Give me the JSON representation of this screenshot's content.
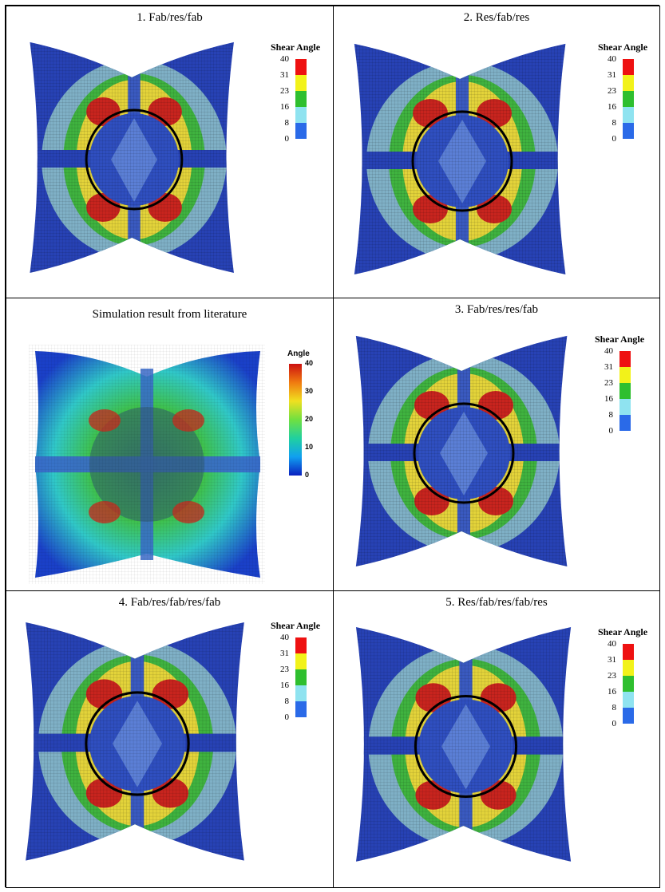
{
  "panels": {
    "p1": {
      "caption": "1. Fab/res/fab"
    },
    "p2": {
      "caption": "2. Res/fab/res"
    },
    "lit": {
      "caption": "Simulation result from literature"
    },
    "p3": {
      "caption": "3. Fab/res/res/fab"
    },
    "p4": {
      "caption": "4. Fab/res/fab/res/fab"
    },
    "p5": {
      "caption": "5. Res/fab/res/fab/res"
    }
  },
  "legend": {
    "title": "Shear Angle",
    "ticks": [
      "40",
      "31",
      "23",
      "16",
      "8",
      "0"
    ],
    "colors": [
      "#ee1111",
      "#f2f21a",
      "#2fbf2f",
      "#8fe3f0",
      "#2a6ae8"
    ]
  },
  "lit_legend": {
    "title": "Angle",
    "ticks": [
      "40",
      "30",
      "20",
      "10",
      "0"
    ]
  },
  "colors": {
    "blue": "#2742b5",
    "lightblue": "#7fb0c6",
    "green": "#3fb33f",
    "yellow": "#e3d33a",
    "red": "#c8241e"
  }
}
